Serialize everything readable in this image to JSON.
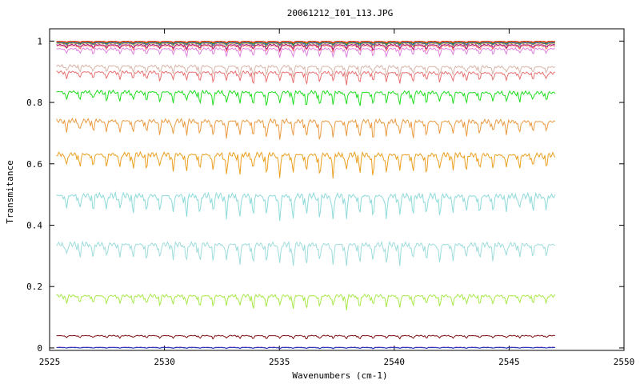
{
  "chart_data": {
    "type": "line",
    "title": "20061212_I01_113.JPG",
    "xlabel": "Wavenumbers (cm-1)",
    "ylabel": "Transmitance",
    "xlim": [
      2525,
      2550
    ],
    "ylim": [
      -0.008,
      1.04
    ],
    "x_ticks": [
      "2525",
      "2530",
      "2535",
      "2540",
      "2545",
      "2550"
    ],
    "y_ticks": [
      "0",
      "0.2",
      "0.4",
      "0.6",
      "0.8",
      "1"
    ],
    "x_range_of_data": [
      2525.3,
      2547.0
    ],
    "grid": false,
    "legend": "none",
    "series": [
      {
        "color": "#7f1f9f",
        "baseline": 0.002,
        "dip_scale": 0.005
      },
      {
        "color": "#1f3fbf",
        "baseline": 0.001,
        "dip_scale": 0.003
      },
      {
        "color": "#7f1010",
        "baseline": 0.04,
        "dip_scale": 0.012
      },
      {
        "color": "#a8e84a",
        "baseline": 0.17,
        "dip_scale": 0.045
      },
      {
        "color": "#9fdcdc",
        "baseline": 0.34,
        "dip_scale": 0.075
      },
      {
        "color": "#8fdada",
        "baseline": 0.5,
        "dip_scale": 0.085
      },
      {
        "color": "#eaa020",
        "baseline": 0.635,
        "dip_scale": 0.075
      },
      {
        "color": "#ea9a40",
        "baseline": 0.745,
        "dip_scale": 0.065
      },
      {
        "color": "#20dd20",
        "baseline": 0.84,
        "dip_scale": 0.05
      },
      {
        "color": "#e87070",
        "baseline": 0.905,
        "dip_scale": 0.04
      },
      {
        "color": "#d8b4a8",
        "baseline": 0.925,
        "dip_scale": 0.035
      },
      {
        "color": "#dd80dd",
        "baseline": 0.975,
        "dip_scale": 0.03
      },
      {
        "color": "#ff6060",
        "baseline": 0.985,
        "dip_scale": 0.02
      },
      {
        "color": "#9f2080",
        "baseline": 0.988,
        "dip_scale": 0.018
      },
      {
        "color": "#8f9020",
        "baseline": 0.993,
        "dip_scale": 0.012
      },
      {
        "color": "#3050e0",
        "baseline": 0.995,
        "dip_scale": 0.01
      },
      {
        "color": "#10a010",
        "baseline": 0.997,
        "dip_scale": 0.008
      },
      {
        "color": "#ff8c00",
        "baseline": 0.998,
        "dip_scale": 0.006
      },
      {
        "color": "#e01010",
        "baseline": 0.999,
        "dip_scale": 0.005
      }
    ]
  }
}
